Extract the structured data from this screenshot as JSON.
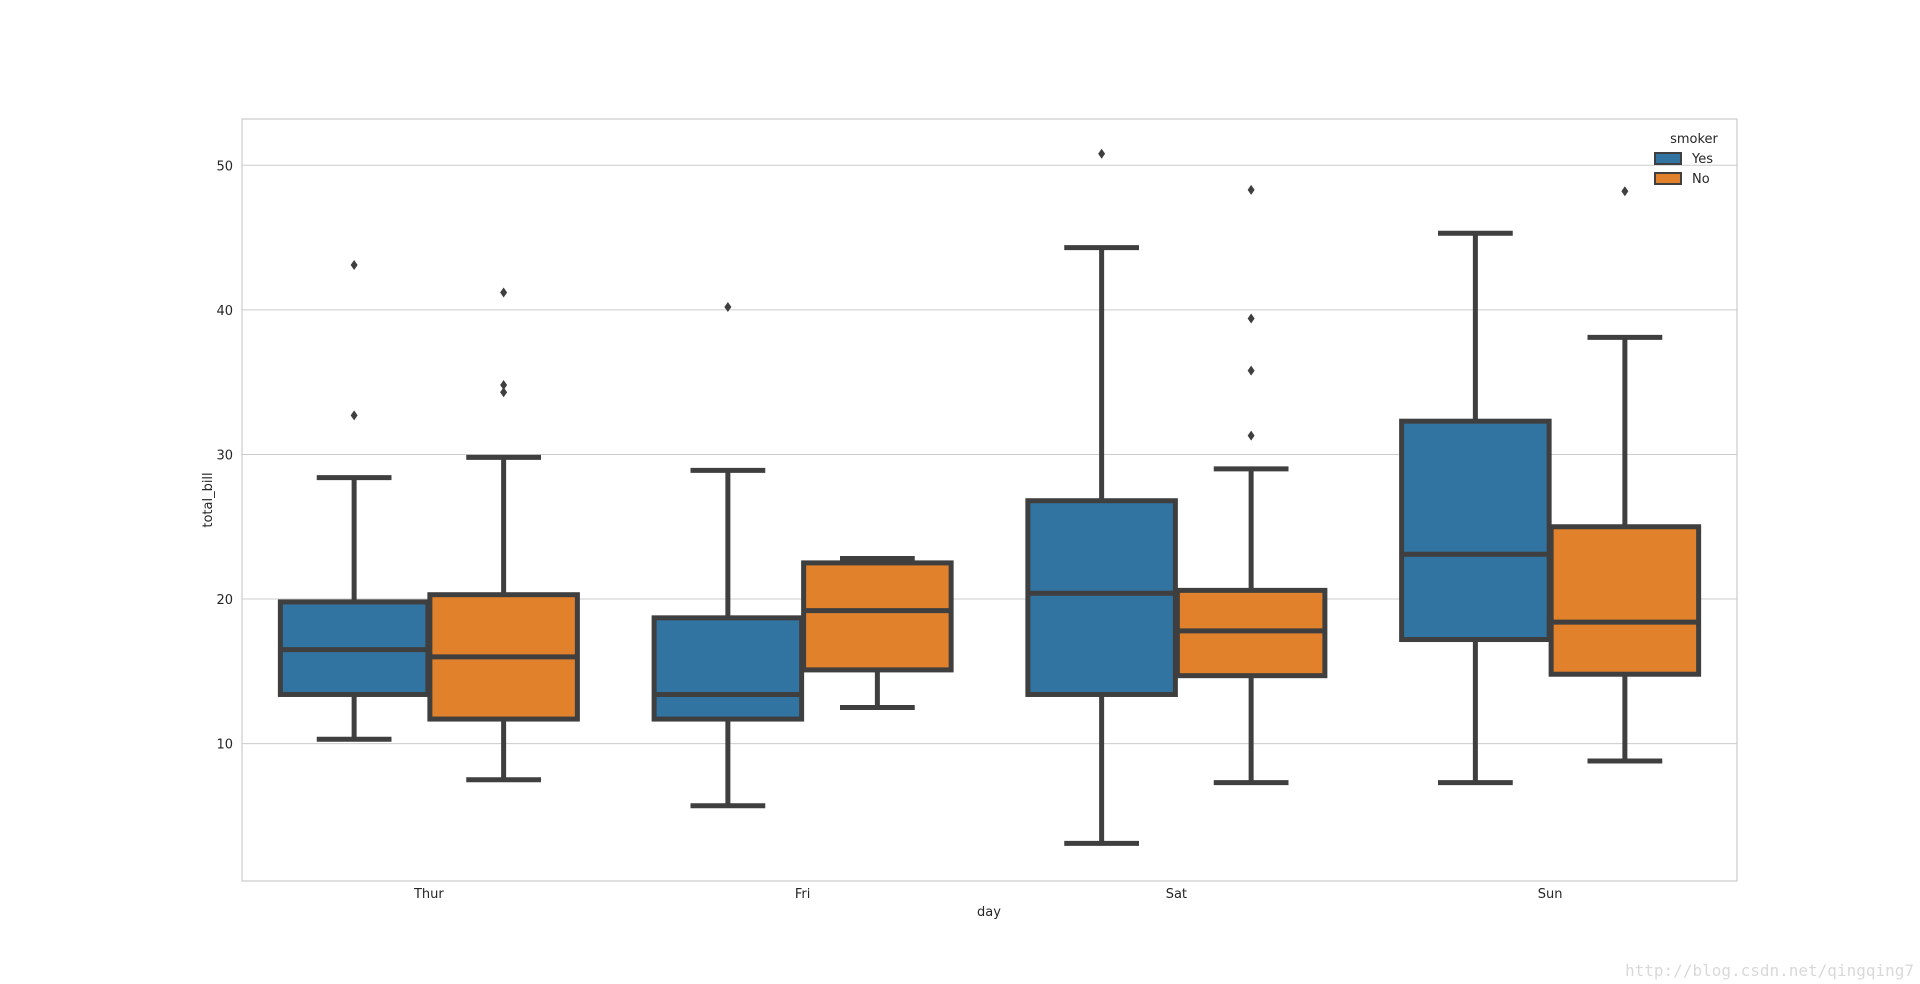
{
  "chart_data": {
    "type": "box",
    "title": "",
    "xlabel": "day",
    "ylabel": "total_bill",
    "categories": [
      "Thur",
      "Fri",
      "Sat",
      "Sun"
    ],
    "ylim": [
      0.5,
      53.2
    ],
    "yticks": [
      10,
      20,
      30,
      40,
      50
    ],
    "grid": true,
    "legend": {
      "title": "smoker",
      "position": "top-right"
    },
    "series": [
      {
        "name": "Yes",
        "color": "#3274a1",
        "boxes": [
          {
            "category": "Thur",
            "whisker_low": 10.3,
            "q1": 13.4,
            "median": 16.5,
            "q3": 19.8,
            "whisker_high": 28.4,
            "outliers": [
              32.7,
              43.1
            ]
          },
          {
            "category": "Fri",
            "whisker_low": 5.7,
            "q1": 11.7,
            "median": 13.4,
            "q3": 18.7,
            "whisker_high": 28.9,
            "outliers": [
              40.2
            ]
          },
          {
            "category": "Sat",
            "whisker_low": 3.1,
            "q1": 13.4,
            "median": 20.4,
            "q3": 26.8,
            "whisker_high": 44.3,
            "outliers": [
              50.8
            ]
          },
          {
            "category": "Sun",
            "whisker_low": 7.3,
            "q1": 17.2,
            "median": 23.1,
            "q3": 32.3,
            "whisker_high": 45.3,
            "outliers": []
          }
        ]
      },
      {
        "name": "No",
        "color": "#e1812c",
        "boxes": [
          {
            "category": "Thur",
            "whisker_low": 7.5,
            "q1": 11.7,
            "median": 16.0,
            "q3": 20.3,
            "whisker_high": 29.8,
            "outliers": [
              34.3,
              34.8,
              41.2
            ]
          },
          {
            "category": "Fri",
            "whisker_low": 12.5,
            "q1": 15.1,
            "median": 19.2,
            "q3": 22.5,
            "whisker_high": 22.8,
            "outliers": []
          },
          {
            "category": "Sat",
            "whisker_low": 7.3,
            "q1": 14.7,
            "median": 17.8,
            "q3": 20.6,
            "whisker_high": 29.0,
            "outliers": [
              31.3,
              35.8,
              39.4,
              48.3
            ]
          },
          {
            "category": "Sun",
            "whisker_low": 8.8,
            "q1": 14.8,
            "median": 18.4,
            "q3": 25.0,
            "whisker_high": 38.1,
            "outliers": [
              48.2
            ]
          }
        ]
      }
    ]
  },
  "watermark": "http://blog.csdn.net/qingqing7"
}
